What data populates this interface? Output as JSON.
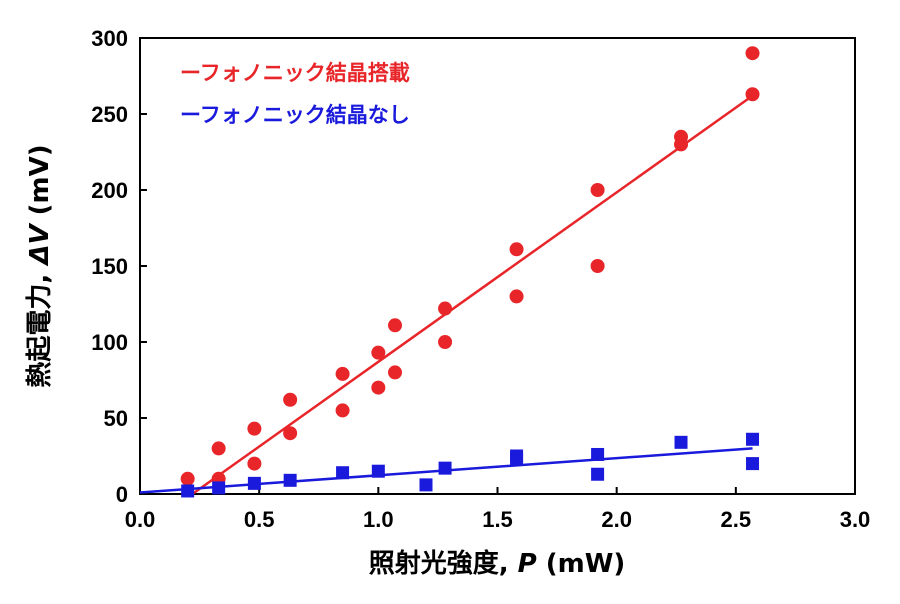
{
  "chart_data": {
    "type": "scatter",
    "xlabel": "照射光強度, P (mW)",
    "xlabel_parts": {
      "main": "照射光強度, ",
      "var": "P",
      "unit": " (mW)"
    },
    "ylabel": "熱起電力, ΔV (mV)",
    "ylabel_parts": {
      "main": "熱起電力, ",
      "var": "ΔV",
      "unit": " (mV)"
    },
    "xlim": [
      0.0,
      3.0
    ],
    "ylim": [
      0,
      300
    ],
    "x_ticks": [
      "0.0",
      "0.5",
      "1.0",
      "1.5",
      "2.0",
      "2.5",
      "3.0"
    ],
    "y_ticks": [
      "0",
      "50",
      "100",
      "150",
      "200",
      "250",
      "300"
    ],
    "grid": false,
    "legend_position": "top-left",
    "series": [
      {
        "name": "フォノニック結晶搭載",
        "legend_label": "ーフォノニック結晶搭載",
        "color": "#e8262a",
        "marker": "circle",
        "points": [
          [
            0.2,
            10
          ],
          [
            0.33,
            10
          ],
          [
            0.33,
            30
          ],
          [
            0.48,
            20
          ],
          [
            0.48,
            43
          ],
          [
            0.63,
            40
          ],
          [
            0.63,
            62
          ],
          [
            0.85,
            55
          ],
          [
            0.85,
            79
          ],
          [
            1.0,
            70
          ],
          [
            1.0,
            93
          ],
          [
            1.07,
            80
          ],
          [
            1.07,
            111
          ],
          [
            1.28,
            100
          ],
          [
            1.28,
            122
          ],
          [
            1.58,
            130
          ],
          [
            1.58,
            161
          ],
          [
            1.92,
            150
          ],
          [
            1.92,
            200
          ],
          [
            2.27,
            230
          ],
          [
            2.27,
            235
          ],
          [
            2.57,
            263
          ],
          [
            2.57,
            290
          ]
        ],
        "fit": [
          [
            0.22,
            0
          ],
          [
            2.57,
            262
          ]
        ]
      },
      {
        "name": "フォノニック結晶なし",
        "legend_label": "ーフォノニック結晶なし",
        "color": "#1a1adc",
        "marker": "square",
        "points": [
          [
            0.2,
            2
          ],
          [
            0.33,
            4
          ],
          [
            0.48,
            7
          ],
          [
            0.63,
            9
          ],
          [
            0.85,
            14
          ],
          [
            1.0,
            15
          ],
          [
            1.2,
            6
          ],
          [
            1.28,
            17
          ],
          [
            1.58,
            23
          ],
          [
            1.58,
            25
          ],
          [
            1.92,
            13
          ],
          [
            1.92,
            26
          ],
          [
            2.27,
            34
          ],
          [
            2.57,
            20
          ],
          [
            2.57,
            36
          ]
        ],
        "fit": [
          [
            0.0,
            1
          ],
          [
            2.57,
            30
          ]
        ]
      }
    ]
  }
}
